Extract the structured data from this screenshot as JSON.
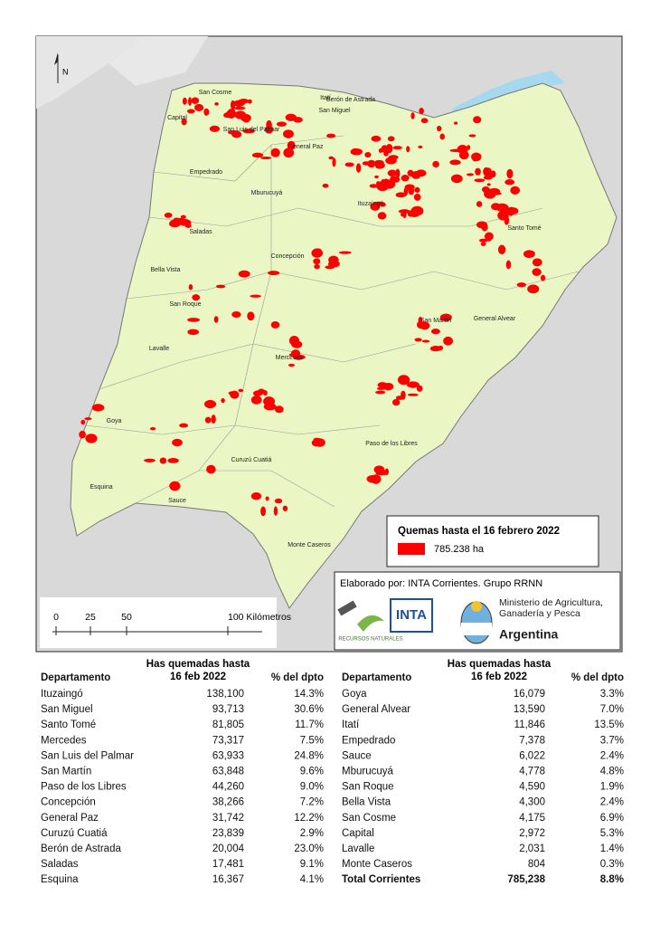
{
  "map": {
    "north": "N",
    "labels": [
      "San Cosme",
      "Itatí",
      "Berón de Astrada",
      "Capital",
      "San Luis del Palmar",
      "San Miguel",
      "General Paz",
      "Empedrado",
      "Mburucuyá",
      "Ituzaingó",
      "Saladas",
      "Santo Tomé",
      "Concepción",
      "Bella Vista",
      "San Roque",
      "San Martín",
      "General Alvear",
      "Lavalle",
      "Mercedes",
      "Goya",
      "Paso de los Libres",
      "Curuzú Cuatiá",
      "Esquina",
      "Sauce",
      "Monte Caseros"
    ],
    "legend": {
      "title": "Quemas hasta el 16 febrero 2022",
      "value": "785.238 ha"
    },
    "credits": {
      "text": "Elaborado por: INTA Corrientes. Grupo RRNN",
      "logo1": "RECURSOS NATURALES",
      "logo2": "INTA",
      "ministry": "Ministerio de Agricultura, Ganadería y Pesca",
      "country": "Argentina"
    },
    "scale": [
      "0",
      "25",
      "50",
      "100 Kilómetros"
    ]
  },
  "tables": [
    {
      "header": [
        "Departamento",
        "Has quemadas hasta 16 feb 2022",
        "% del dpto"
      ],
      "rows": [
        [
          "Ituzaingó",
          "138,100",
          "14.3%"
        ],
        [
          "San Miguel",
          "93,713",
          "30.6%"
        ],
        [
          "Santo Tomé",
          "81,805",
          "11.7%"
        ],
        [
          "Mercedes",
          "73,317",
          "7.5%"
        ],
        [
          "San Luis del Palmar",
          "63,933",
          "24.8%"
        ],
        [
          "San Martín",
          "63,848",
          "9.6%"
        ],
        [
          "Paso de los Libres",
          "44,260",
          "9.0%"
        ],
        [
          "Concepción",
          "38,266",
          "7.2%"
        ],
        [
          "General Paz",
          "31,742",
          "12.2%"
        ],
        [
          "Curuzú Cuatiá",
          "23,839",
          "2.9%"
        ],
        [
          "Berón de Astrada",
          "20,004",
          "23.0%"
        ],
        [
          "Saladas",
          "17,481",
          "9.1%"
        ],
        [
          "Esquina",
          "16,367",
          "4.1%"
        ]
      ]
    },
    {
      "header": [
        "Departamento",
        "Has quemadas hasta 16 feb 2022",
        "% del dpto"
      ],
      "rows": [
        [
          "Goya",
          "16,079",
          "3.3%"
        ],
        [
          "General Alvear",
          "13,590",
          "7.0%"
        ],
        [
          "Itatí",
          "11,846",
          "13.5%"
        ],
        [
          "Empedrado",
          "7,378",
          "3.7%"
        ],
        [
          "Sauce",
          "6,022",
          "2.4%"
        ],
        [
          "Mburucuyá",
          "4,778",
          "4.8%"
        ],
        [
          "San Roque",
          "4,590",
          "1.9%"
        ],
        [
          "Bella Vista",
          "4,300",
          "2.4%"
        ],
        [
          "San Cosme",
          "4,175",
          "6.9%"
        ],
        [
          "Capital",
          "2,972",
          "5.3%"
        ],
        [
          "Lavalle",
          "2,031",
          "1.4%"
        ],
        [
          "Monte Caseros",
          "804",
          "0.3%"
        ],
        [
          "Total Corrientes",
          "785,238",
          "8.8%"
        ]
      ]
    }
  ]
}
